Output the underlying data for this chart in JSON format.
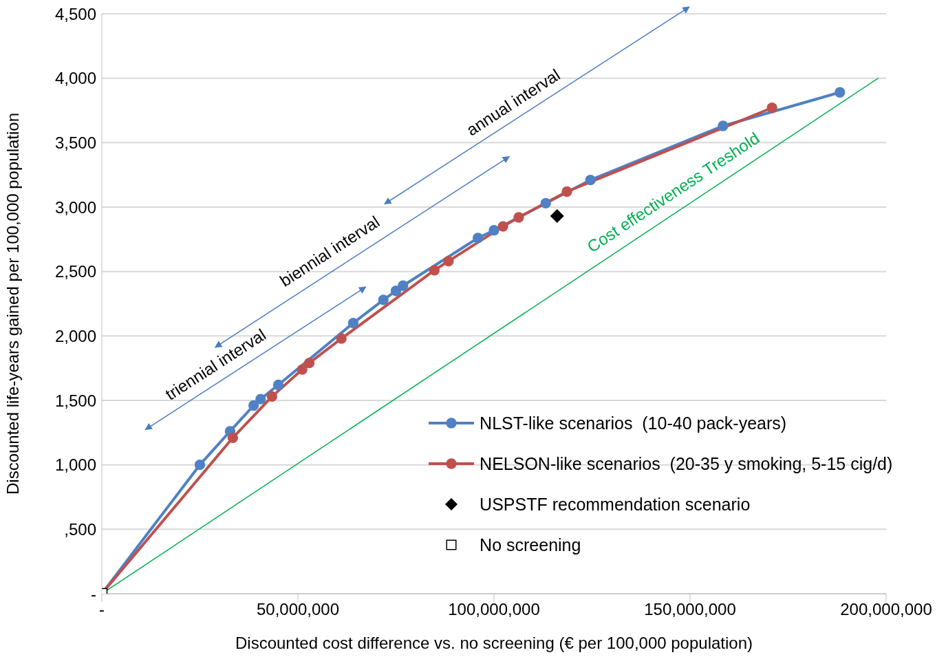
{
  "chart_data": {
    "type": "line",
    "xlabel": "Discounted cost difference vs. no screening (€ per 100,000 population)",
    "ylabel": "Discounted life-years gained per 100,000 population",
    "xlim": [
      0,
      200000000
    ],
    "ylim": [
      0,
      4500
    ],
    "xticks": [
      {
        "value": 0,
        "label": "-"
      },
      {
        "value": 50000000,
        "label": "50,000,000"
      },
      {
        "value": 100000000,
        "label": "100,000,000"
      },
      {
        "value": 150000000,
        "label": "150,000,000"
      },
      {
        "value": 200000000,
        "label": "200,000,000"
      }
    ],
    "yticks": [
      {
        "value": 0,
        "label": "-"
      },
      {
        "value": 500,
        "label": ",500"
      },
      {
        "value": 1000,
        "label": "1,000"
      },
      {
        "value": 1500,
        "label": "1,500"
      },
      {
        "value": 2000,
        "label": "2,000"
      },
      {
        "value": 2500,
        "label": "2,500"
      },
      {
        "value": 3000,
        "label": "3,000"
      },
      {
        "value": 3500,
        "label": "3,500"
      },
      {
        "value": 4000,
        "label": "4,000"
      },
      {
        "value": 4500,
        "label": "4,500"
      }
    ],
    "grid": "y",
    "legend": "bottom right",
    "series": [
      {
        "name": "Cost effectiveness Treshold",
        "marker": "none",
        "color": "#00b050",
        "x": [
          0,
          198000000
        ],
        "values": [
          0,
          4000
        ]
      },
      {
        "name": "NLST-like scenarios  (10-40 pack-years)",
        "marker": "circle",
        "color": "#4f81c4",
        "x": [
          0,
          25000000,
          32700000,
          38700000,
          40500000,
          45000000,
          64100000,
          71800000,
          75000000,
          76800000,
          95900000,
          100000000,
          113200000,
          124600000,
          158400000,
          188200000
        ],
        "values": [
          0,
          1000,
          1260,
          1460,
          1510,
          1620,
          2100,
          2280,
          2350,
          2390,
          2760,
          2820,
          3030,
          3210,
          3630,
          3890
        ]
      },
      {
        "name": "NELSON-like scenarios  (20-35 y smoking, 5-15 cig/d)",
        "marker": "circle",
        "color": "#c0504d",
        "x": [
          0,
          33400000,
          43400000,
          51100000,
          52900000,
          61100000,
          84800000,
          88400000,
          102300000,
          106300000,
          118600000,
          170900000
        ],
        "values": [
          0,
          1210,
          1530,
          1740,
          1790,
          1980,
          2510,
          2580,
          2850,
          2920,
          3120,
          3770
        ]
      },
      {
        "name": "USPSTF recommendation scenario",
        "type": "scatter",
        "marker": "diamond",
        "color": "#000000",
        "x": [
          116100000
        ],
        "values": [
          2930
        ]
      },
      {
        "name": "No screening",
        "type": "scatter",
        "marker": "square",
        "color": "#000000",
        "x": [
          0
        ],
        "values": [
          0
        ]
      }
    ],
    "annotations": [
      "triennial interval",
      "biennial interval",
      "annual interval"
    ]
  }
}
